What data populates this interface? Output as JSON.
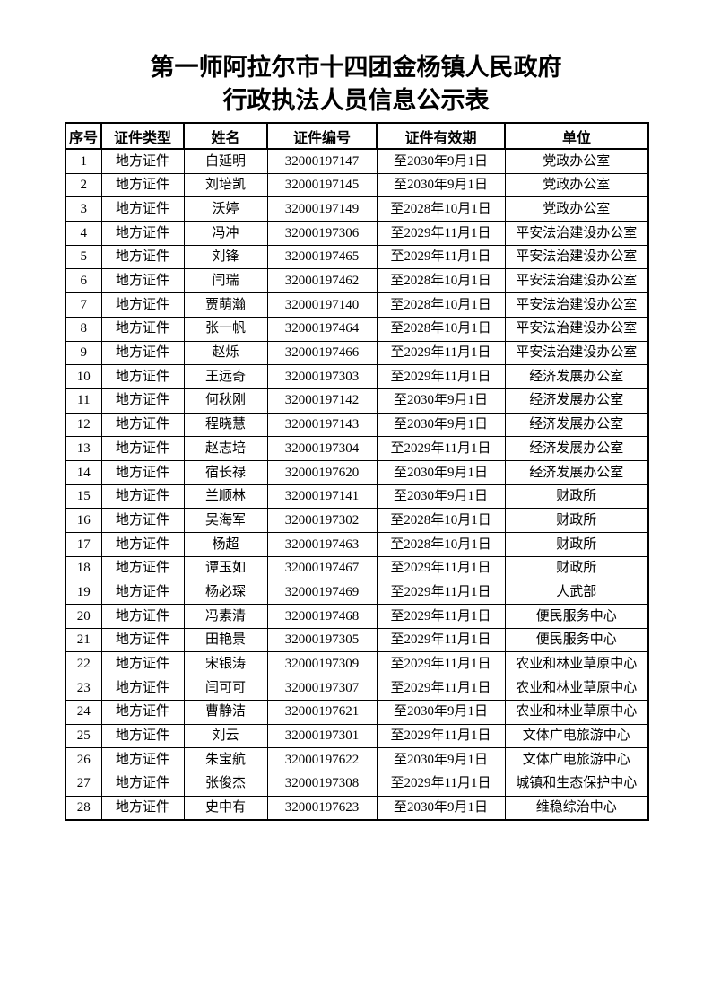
{
  "page": {
    "title_line1": "第一师阿拉尔市十四团金杨镇人民政府",
    "title_line2": "行政执法人员信息公示表"
  },
  "colors": {
    "background": "#ffffff",
    "text": "#000000",
    "border": "#000000"
  },
  "table": {
    "columns": [
      "序号",
      "证件类型",
      "姓名",
      "证件编号",
      "证件有效期",
      "单位"
    ],
    "rows": [
      [
        "1",
        "地方证件",
        "白延明",
        "32000197147",
        "至2030年9月1日",
        "党政办公室"
      ],
      [
        "2",
        "地方证件",
        "刘培凯",
        "32000197145",
        "至2030年9月1日",
        "党政办公室"
      ],
      [
        "3",
        "地方证件",
        "沃婷",
        "32000197149",
        "至2028年10月1日",
        "党政办公室"
      ],
      [
        "4",
        "地方证件",
        "冯冲",
        "32000197306",
        "至2029年11月1日",
        "平安法治建设办公室"
      ],
      [
        "5",
        "地方证件",
        "刘锋",
        "32000197465",
        "至2029年11月1日",
        "平安法治建设办公室"
      ],
      [
        "6",
        "地方证件",
        "闫瑞",
        "32000197462",
        "至2028年10月1日",
        "平安法治建设办公室"
      ],
      [
        "7",
        "地方证件",
        "贾萌瀚",
        "32000197140",
        "至2028年10月1日",
        "平安法治建设办公室"
      ],
      [
        "8",
        "地方证件",
        "张一帆",
        "32000197464",
        "至2028年10月1日",
        "平安法治建设办公室"
      ],
      [
        "9",
        "地方证件",
        "赵烁",
        "32000197466",
        "至2029年11月1日",
        "平安法治建设办公室"
      ],
      [
        "10",
        "地方证件",
        "王远奇",
        "32000197303",
        "至2029年11月1日",
        "经济发展办公室"
      ],
      [
        "11",
        "地方证件",
        "何秋刚",
        "32000197142",
        "至2030年9月1日",
        "经济发展办公室"
      ],
      [
        "12",
        "地方证件",
        "程晓慧",
        "32000197143",
        "至2030年9月1日",
        "经济发展办公室"
      ],
      [
        "13",
        "地方证件",
        "赵志培",
        "32000197304",
        "至2029年11月1日",
        "经济发展办公室"
      ],
      [
        "14",
        "地方证件",
        "宿长禄",
        "32000197620",
        "至2030年9月1日",
        "经济发展办公室"
      ],
      [
        "15",
        "地方证件",
        "兰顺林",
        "32000197141",
        "至2030年9月1日",
        "财政所"
      ],
      [
        "16",
        "地方证件",
        "吴海军",
        "32000197302",
        "至2028年10月1日",
        "财政所"
      ],
      [
        "17",
        "地方证件",
        "杨超",
        "32000197463",
        "至2028年10月1日",
        "财政所"
      ],
      [
        "18",
        "地方证件",
        "谭玉如",
        "32000197467",
        "至2029年11月1日",
        "财政所"
      ],
      [
        "19",
        "地方证件",
        "杨必琛",
        "32000197469",
        "至2029年11月1日",
        "人武部"
      ],
      [
        "20",
        "地方证件",
        "冯素清",
        "32000197468",
        "至2029年11月1日",
        "便民服务中心"
      ],
      [
        "21",
        "地方证件",
        "田艳景",
        "32000197305",
        "至2029年11月1日",
        "便民服务中心"
      ],
      [
        "22",
        "地方证件",
        "宋银涛",
        "32000197309",
        "至2029年11月1日",
        "农业和林业草原中心"
      ],
      [
        "23",
        "地方证件",
        "闫可可",
        "32000197307",
        "至2029年11月1日",
        "农业和林业草原中心"
      ],
      [
        "24",
        "地方证件",
        "曹静洁",
        "32000197621",
        "至2030年9月1日",
        "农业和林业草原中心"
      ],
      [
        "25",
        "地方证件",
        "刘云",
        "32000197301",
        "至2029年11月1日",
        "文体广电旅游中心"
      ],
      [
        "26",
        "地方证件",
        "朱宝航",
        "32000197622",
        "至2030年9月1日",
        "文体广电旅游中心"
      ],
      [
        "27",
        "地方证件",
        "张俊杰",
        "32000197308",
        "至2029年11月1日",
        "城镇和生态保护中心"
      ],
      [
        "28",
        "地方证件",
        "史中有",
        "32000197623",
        "至2030年9月1日",
        "维稳综治中心"
      ]
    ]
  }
}
